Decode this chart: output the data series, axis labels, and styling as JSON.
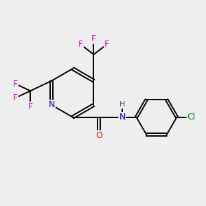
{
  "background_color": "#eeeeee",
  "bond_color": "#000000",
  "N_color": "#0000cc",
  "O_color": "#ff0000",
  "F_color": "#cc00cc",
  "Cl_color": "#008800",
  "H_color": "#336677",
  "figsize": [
    3.0,
    3.0
  ],
  "dpi": 100,
  "lw": 1.4,
  "fs": 9.0,
  "xlim": [
    0,
    10
  ],
  "ylim": [
    0,
    10
  ]
}
